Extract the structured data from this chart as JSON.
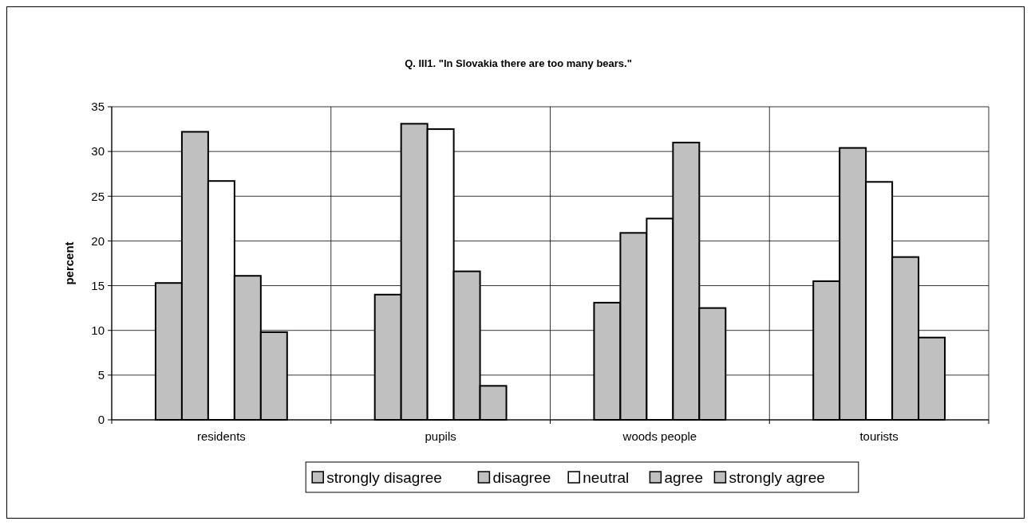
{
  "chart_data": {
    "type": "bar",
    "title": "Q. III1. \"In Slovakia there are too many bears.\"",
    "ylabel": "percent",
    "categories": [
      "residents",
      "pupils",
      "woods people",
      "tourists"
    ],
    "series": [
      {
        "name": "strongly disagree",
        "color": "#c0c0c0",
        "values": [
          15.3,
          14.0,
          13.1,
          15.5
        ]
      },
      {
        "name": "disagree",
        "color": "#c0c0c0",
        "values": [
          32.2,
          33.1,
          20.9,
          30.4
        ]
      },
      {
        "name": "neutral",
        "color": "#ffffff",
        "values": [
          26.7,
          32.5,
          22.5,
          26.6
        ]
      },
      {
        "name": "agree",
        "color": "#c0c0c0",
        "values": [
          16.1,
          16.6,
          31.0,
          18.2
        ]
      },
      {
        "name": "strongly agree",
        "color": "#c0c0c0",
        "values": [
          9.8,
          3.8,
          12.5,
          9.2
        ]
      }
    ],
    "ylim": [
      0,
      35
    ],
    "yticks": [
      0,
      5,
      10,
      15,
      20,
      25,
      30,
      35
    ],
    "grid": true,
    "legend": "bottom"
  }
}
